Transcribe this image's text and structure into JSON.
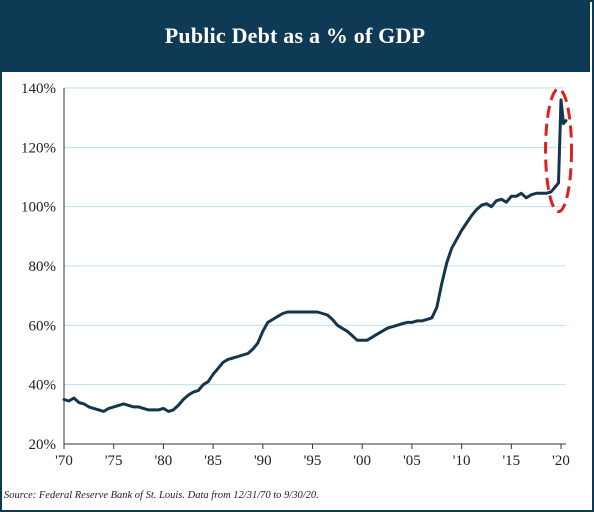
{
  "header": {
    "title": "Public Debt as a % of GDP"
  },
  "footer": {
    "source": "Source: Federal Reserve Bank of St. Louis. Data from 12/31/70 to 9/30/20."
  },
  "colors": {
    "header_bg": "#0f3a55",
    "line": "#15354a",
    "grid": "#bfe0f0",
    "highlight": "#e02020"
  },
  "chart_data": {
    "type": "line",
    "title": "Public Debt as a % of GDP",
    "xlabel": "",
    "ylabel": "",
    "xlim": [
      1970,
      2020.5
    ],
    "ylim": [
      20,
      140
    ],
    "y_ticks": [
      20,
      40,
      60,
      80,
      100,
      120,
      140
    ],
    "y_tick_labels": [
      "20%",
      "40%",
      "60%",
      "80%",
      "100%",
      "120%",
      "140%"
    ],
    "x_ticks": [
      1970,
      1975,
      1980,
      1985,
      1990,
      1995,
      2000,
      2005,
      2010,
      2015,
      2020
    ],
    "x_tick_labels": [
      "'70",
      "'75",
      "'80",
      "'85",
      "'90",
      "'95",
      "'00",
      "'05",
      "'10",
      "'15",
      "'20"
    ],
    "grid": "horizontal",
    "annotation": "red dashed ellipse highlighting 2020 spike",
    "series": [
      {
        "x": [
          1970.0,
          1970.5,
          1971.0,
          1971.5,
          1972.0,
          1972.5,
          1973.0,
          1973.5,
          1974.0,
          1974.5,
          1975.0,
          1975.5,
          1976.0,
          1976.5,
          1977.0,
          1977.5,
          1978.0,
          1978.5,
          1979.0,
          1979.5,
          1980.0,
          1980.5,
          1981.0,
          1981.5,
          1982.0,
          1982.5,
          1983.0,
          1983.5,
          1984.0,
          1984.5,
          1985.0,
          1985.5,
          1986.0,
          1986.5,
          1987.0,
          1987.5,
          1988.0,
          1988.5,
          1989.0,
          1989.5,
          1990.0,
          1990.5,
          1991.0,
          1991.5,
          1992.0,
          1992.5,
          1993.0,
          1993.5,
          1994.0,
          1994.5,
          1995.0,
          1995.5,
          1996.0,
          1996.5,
          1997.0,
          1997.5,
          1998.0,
          1998.5,
          1999.0,
          1999.5,
          2000.0,
          2000.5,
          2001.0,
          2001.5,
          2002.0,
          2002.5,
          2003.0,
          2003.5,
          2004.0,
          2004.5,
          2005.0,
          2005.5,
          2006.0,
          2006.5,
          2007.0,
          2007.5,
          2008.0,
          2008.5,
          2009.0,
          2009.5,
          2010.0,
          2010.5,
          2011.0,
          2011.5,
          2012.0,
          2012.5,
          2013.0,
          2013.5,
          2014.0,
          2014.5,
          2015.0,
          2015.5,
          2016.0,
          2016.5,
          2017.0,
          2017.5,
          2018.0,
          2018.5,
          2019.0,
          2019.5,
          2019.75,
          2020.0,
          2020.25,
          2020.5
        ],
        "values": [
          35,
          34.5,
          35.5,
          34,
          33.5,
          32.5,
          32,
          31.5,
          31,
          32,
          32.5,
          33,
          33.5,
          33,
          32.5,
          32.5,
          32,
          31.5,
          31.5,
          31.5,
          32,
          31,
          31.5,
          33,
          35,
          36.5,
          37.5,
          38,
          40,
          41,
          43.5,
          45.5,
          47.5,
          48.5,
          49,
          49.5,
          50,
          50.5,
          52,
          54,
          58,
          61,
          62,
          63,
          64,
          64.5,
          64.5,
          64.5,
          64.5,
          64.5,
          64.5,
          64.5,
          64,
          63.5,
          62,
          60,
          59,
          58,
          56.5,
          55,
          55,
          55,
          56,
          57,
          58,
          59,
          59.5,
          60,
          60.5,
          61,
          61,
          61.5,
          61.5,
          62,
          62.5,
          66,
          74,
          81,
          86,
          89,
          92,
          94.5,
          97,
          99,
          100.5,
          101,
          100,
          102,
          102.5,
          101.5,
          103.5,
          103.5,
          104.5,
          103,
          104,
          104.5,
          104.5,
          104.5,
          105,
          107,
          108,
          136,
          128,
          129
        ]
      }
    ]
  }
}
